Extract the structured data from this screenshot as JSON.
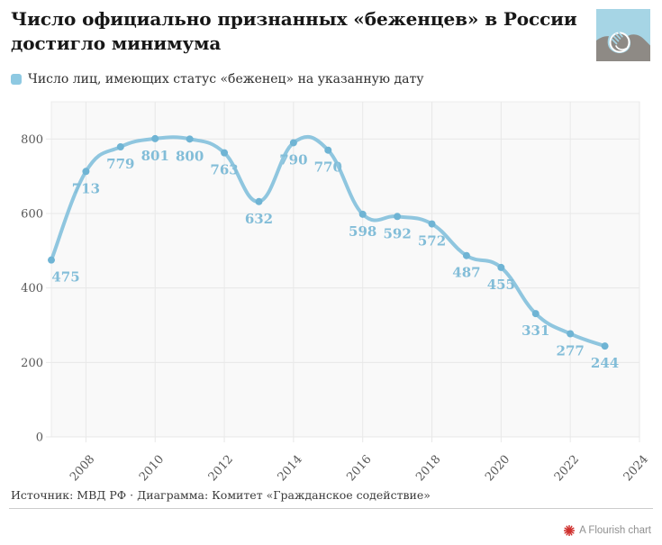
{
  "header": {
    "title_lines": [
      "Число официально признанных «беженцев» в России",
      "достигло минимума"
    ]
  },
  "legend": {
    "label": "Число лиц, имеющих статус «беженец» на указанную дату",
    "swatch_color": "#8ec9e2"
  },
  "chart_data": {
    "type": "line",
    "title": "Число официально признанных «беженцев» в России достигло минимума",
    "series": [
      {
        "name": "Число лиц, имеющих статус «беженец» на указанную дату",
        "x": [
          2007,
          2008,
          2009,
          2010,
          2011,
          2012,
          2013,
          2014,
          2015,
          2016,
          2017,
          2018,
          2019,
          2020,
          2021,
          2022,
          2023
        ],
        "values": [
          475,
          713,
          779,
          801,
          800,
          763,
          632,
          790,
          770,
          598,
          592,
          572,
          487,
          455,
          331,
          277,
          244
        ]
      }
    ],
    "x_ticks": [
      2008,
      2010,
      2012,
      2014,
      2016,
      2018,
      2020,
      2022,
      2024
    ],
    "y_ticks": [
      0,
      200,
      400,
      600,
      800
    ],
    "xlim": [
      2007,
      2024
    ],
    "ylim": [
      0,
      900
    ],
    "grid": true,
    "legend_position": "top-left",
    "line_color": "#8fc6df",
    "marker_color": "#6fb4d4",
    "data_label_color": "#82bdd8",
    "axis_text_color": "#585858",
    "grid_color": "#e8e8e8",
    "plot_bg_color": "#f9f9f9",
    "plot_border_color": "#ececec"
  },
  "footer": {
    "source": "Источник: МВД РФ · Диаграмма: Комитет «Гражданское содействие»",
    "attribution": "A Flourish chart",
    "attribution_icon_color": "#cf2f2c"
  }
}
